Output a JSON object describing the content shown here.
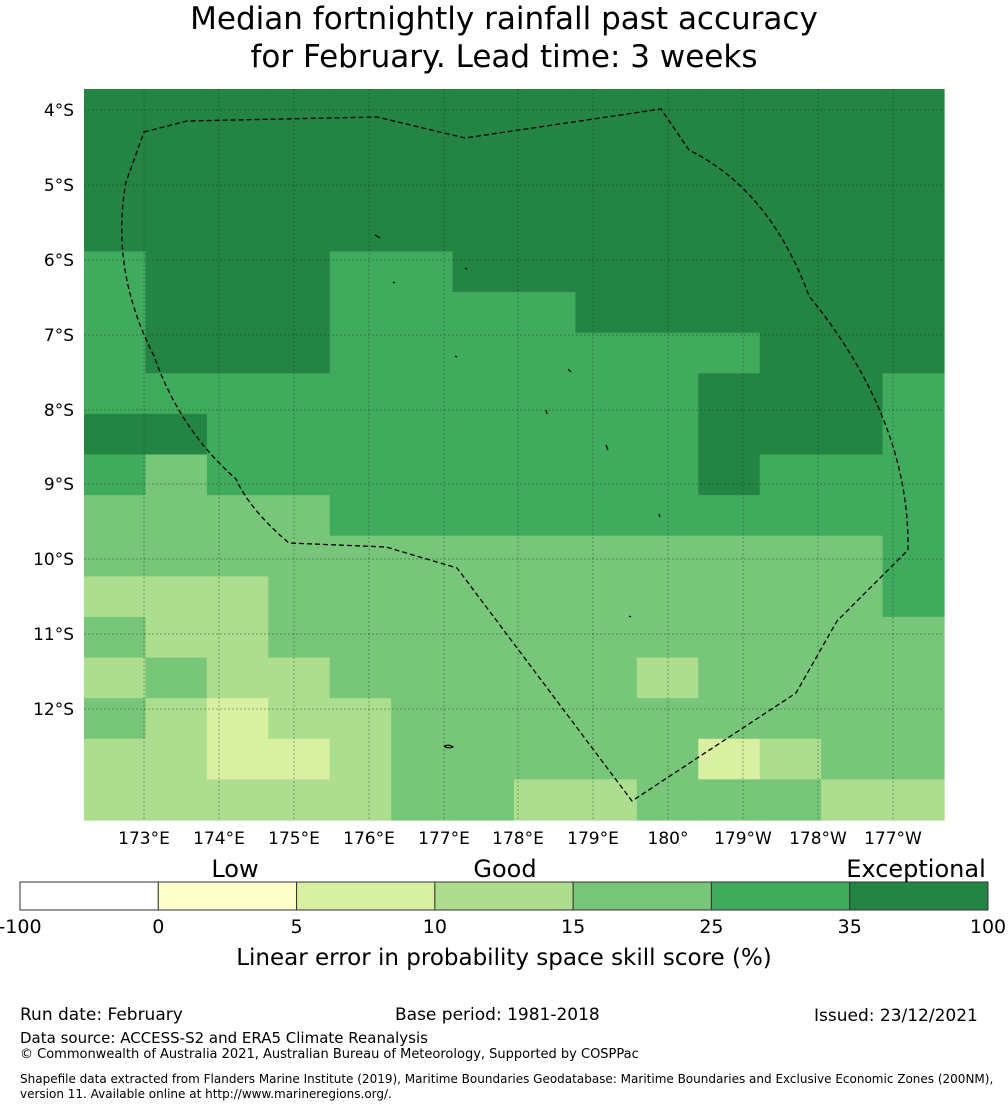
{
  "title": {
    "line1": "Median fortnightly rainfall past accuracy",
    "line2": "for February. Lead time: 3 weeks"
  },
  "map": {
    "lat_labels": [
      "4°S",
      "5°S",
      "6°S",
      "7°S",
      "8°S",
      "9°S",
      "10°S",
      "11°S",
      "12°S"
    ],
    "lon_labels": [
      "173°E",
      "174°E",
      "175°E",
      "176°E",
      "177°E",
      "178°E",
      "179°E",
      "180°",
      "179°W",
      "178°W",
      "177°W"
    ],
    "grid_cols": 14,
    "grid_rows": 18,
    "cell_classes": [
      "66666666666666",
      "66666666666666",
      "66666666666666",
      "66666666666666",
      "56665566666666",
      "56665555666666",
      "56665555555666",
      "55555555556665",
      "66555555556665",
      "54555555556555",
      "44445555555555",
      "44444444444445",
      "33344444444445",
      "43344444444444",
      "34334444434444",
      "43233444444444",
      "33223444442344",
      "33333443344433"
    ],
    "colors": {
      "0": "#ffffff",
      "1": "#ffffcc",
      "2": "#d9f0a3",
      "3": "#addd8e",
      "4": "#78c679",
      "5": "#41ab5d",
      "6": "#238443"
    },
    "boundary_style": "dashed"
  },
  "legend": {
    "categories": [
      "Low",
      "Good",
      "Exceptional"
    ],
    "ticks": [
      "-100",
      "0",
      "5",
      "10",
      "15",
      "25",
      "35",
      "100"
    ],
    "label": "Linear error in probability space skill score (%)"
  },
  "footer": {
    "run_date": "Run date: February",
    "base_period": "Base period: 1981-2018",
    "issued": "Issued: 23/12/2021",
    "data_source": "Data source: ACCESS-S2 and ERA5 Climate Reanalysis",
    "copyright": "© Commonwealth of Australia 2021, Australian Bureau of Meteorology, Supported by COSPPac",
    "shapefile": "Shapefile data extracted from Flanders Marine Institute (2019), Maritime Boundaries Geodatabase: Maritime Boundaries and Exclusive Economic Zones (200NM), version 11. Available online at http://www.marineregions.org/."
  }
}
